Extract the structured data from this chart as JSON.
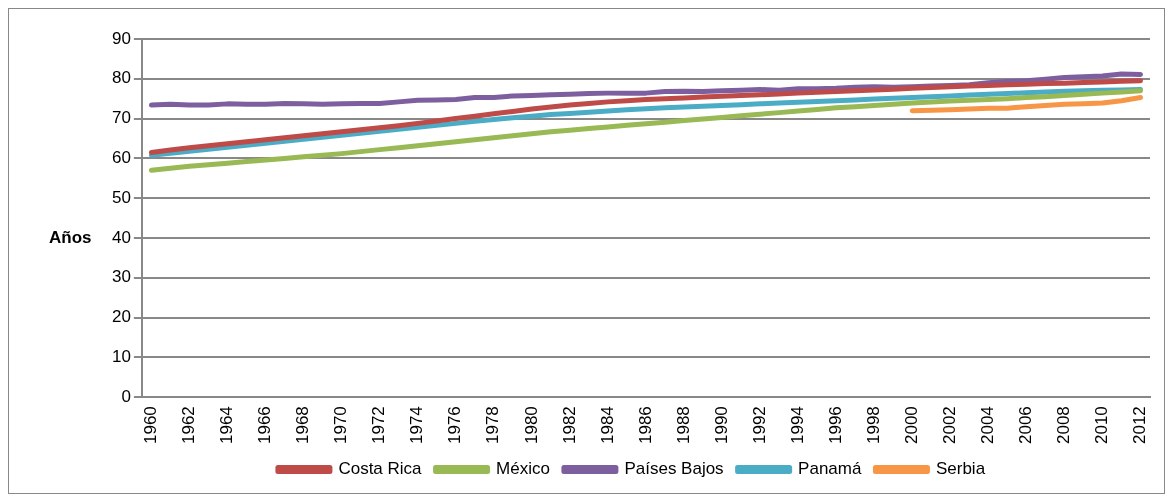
{
  "chart_data": {
    "type": "line",
    "ylabel": "Años",
    "categories": [
      "1960",
      null,
      "1962",
      null,
      "1964",
      null,
      "1966",
      null,
      "1968",
      null,
      "1970",
      null,
      "1972",
      null,
      "1974",
      null,
      "1976",
      null,
      "1978",
      null,
      "1980",
      null,
      "1982",
      null,
      "1984",
      null,
      "1986",
      null,
      "1988",
      null,
      "1990",
      null,
      "1992",
      null,
      "1994",
      null,
      "1996",
      null,
      "1998",
      null,
      "2000",
      null,
      "2002",
      null,
      "2004",
      null,
      "2006",
      null,
      "2008",
      null,
      "2010",
      null,
      "2012"
    ],
    "series": [
      {
        "name": "Costa Rica",
        "color": "#be4b48",
        "values": [
          61.5,
          62.1,
          62.7,
          63.2,
          63.7,
          64.2,
          64.7,
          65.2,
          65.7,
          66.2,
          66.7,
          67.2,
          67.7,
          68.2,
          68.8,
          69.4,
          70.0,
          70.6,
          71.2,
          71.8,
          72.4,
          72.9,
          73.4,
          73.8,
          74.2,
          74.5,
          74.8,
          75.0,
          75.2,
          75.4,
          75.6,
          75.8,
          76.0,
          76.2,
          76.4,
          76.6,
          76.8,
          77.0,
          77.2,
          77.4,
          77.6,
          77.8,
          78.0,
          78.2,
          78.3,
          78.5,
          78.6,
          78.8,
          78.9,
          79.1,
          79.2,
          79.4,
          79.5
        ]
      },
      {
        "name": "México",
        "color": "#98b954",
        "values": [
          57.0,
          57.5,
          58.0,
          58.4,
          58.8,
          59.2,
          59.6,
          60.0,
          60.4,
          60.8,
          61.2,
          61.7,
          62.2,
          62.7,
          63.2,
          63.7,
          64.2,
          64.7,
          65.2,
          65.7,
          66.2,
          66.7,
          67.1,
          67.5,
          67.9,
          68.3,
          68.7,
          69.1,
          69.5,
          69.9,
          70.3,
          70.7,
          71.1,
          71.5,
          71.9,
          72.3,
          72.7,
          73.0,
          73.3,
          73.6,
          73.9,
          74.2,
          74.4,
          74.6,
          74.8,
          75.0,
          75.3,
          75.5,
          75.8,
          76.1,
          76.4,
          76.7,
          77.0
        ]
      },
      {
        "name": "Países Bajos",
        "color": "#7d5fa0",
        "values": [
          73.4,
          73.6,
          73.4,
          73.4,
          73.7,
          73.6,
          73.6,
          73.8,
          73.7,
          73.6,
          73.7,
          73.8,
          73.8,
          74.2,
          74.6,
          74.7,
          74.8,
          75.3,
          75.3,
          75.7,
          75.8,
          76.0,
          76.1,
          76.3,
          76.4,
          76.4,
          76.4,
          76.8,
          76.9,
          76.8,
          77.0,
          77.1,
          77.3,
          77.1,
          77.5,
          77.5,
          77.6,
          77.9,
          78.0,
          77.9,
          78.0,
          78.2,
          78.3,
          78.5,
          79.0,
          79.3,
          79.5,
          79.9,
          80.3,
          80.5,
          80.7,
          81.2,
          81.1
        ]
      },
      {
        "name": "Panamá",
        "color": "#4bacc6",
        "values": [
          60.8,
          61.3,
          61.8,
          62.3,
          62.8,
          63.3,
          63.8,
          64.3,
          64.8,
          65.3,
          65.8,
          66.3,
          66.8,
          67.3,
          67.8,
          68.3,
          68.8,
          69.3,
          69.8,
          70.2,
          70.6,
          71.0,
          71.3,
          71.6,
          71.9,
          72.2,
          72.5,
          72.7,
          72.9,
          73.1,
          73.3,
          73.5,
          73.7,
          73.9,
          74.1,
          74.3,
          74.5,
          74.7,
          74.9,
          75.1,
          75.3,
          75.5,
          75.7,
          75.9,
          76.1,
          76.3,
          76.5,
          76.7,
          76.9,
          77.0,
          77.1,
          77.2,
          77.3
        ]
      },
      {
        "name": "Serbia",
        "color": "#f79646",
        "values": [
          null,
          null,
          null,
          null,
          null,
          null,
          null,
          null,
          null,
          null,
          null,
          null,
          null,
          null,
          null,
          null,
          null,
          null,
          null,
          null,
          null,
          null,
          null,
          null,
          null,
          null,
          null,
          null,
          null,
          null,
          null,
          null,
          null,
          null,
          null,
          null,
          null,
          null,
          null,
          null,
          72.0,
          72.1,
          72.2,
          72.4,
          72.6,
          72.6,
          73.0,
          73.3,
          73.6,
          73.7,
          73.9,
          74.5,
          75.3
        ]
      }
    ],
    "ylim": [
      0,
      90
    ],
    "yticks": [
      0,
      10,
      20,
      30,
      40,
      50,
      60,
      70,
      80,
      90
    ],
    "grid": "y",
    "legend": "bottom",
    "marker": "none",
    "line_style": "solid"
  }
}
